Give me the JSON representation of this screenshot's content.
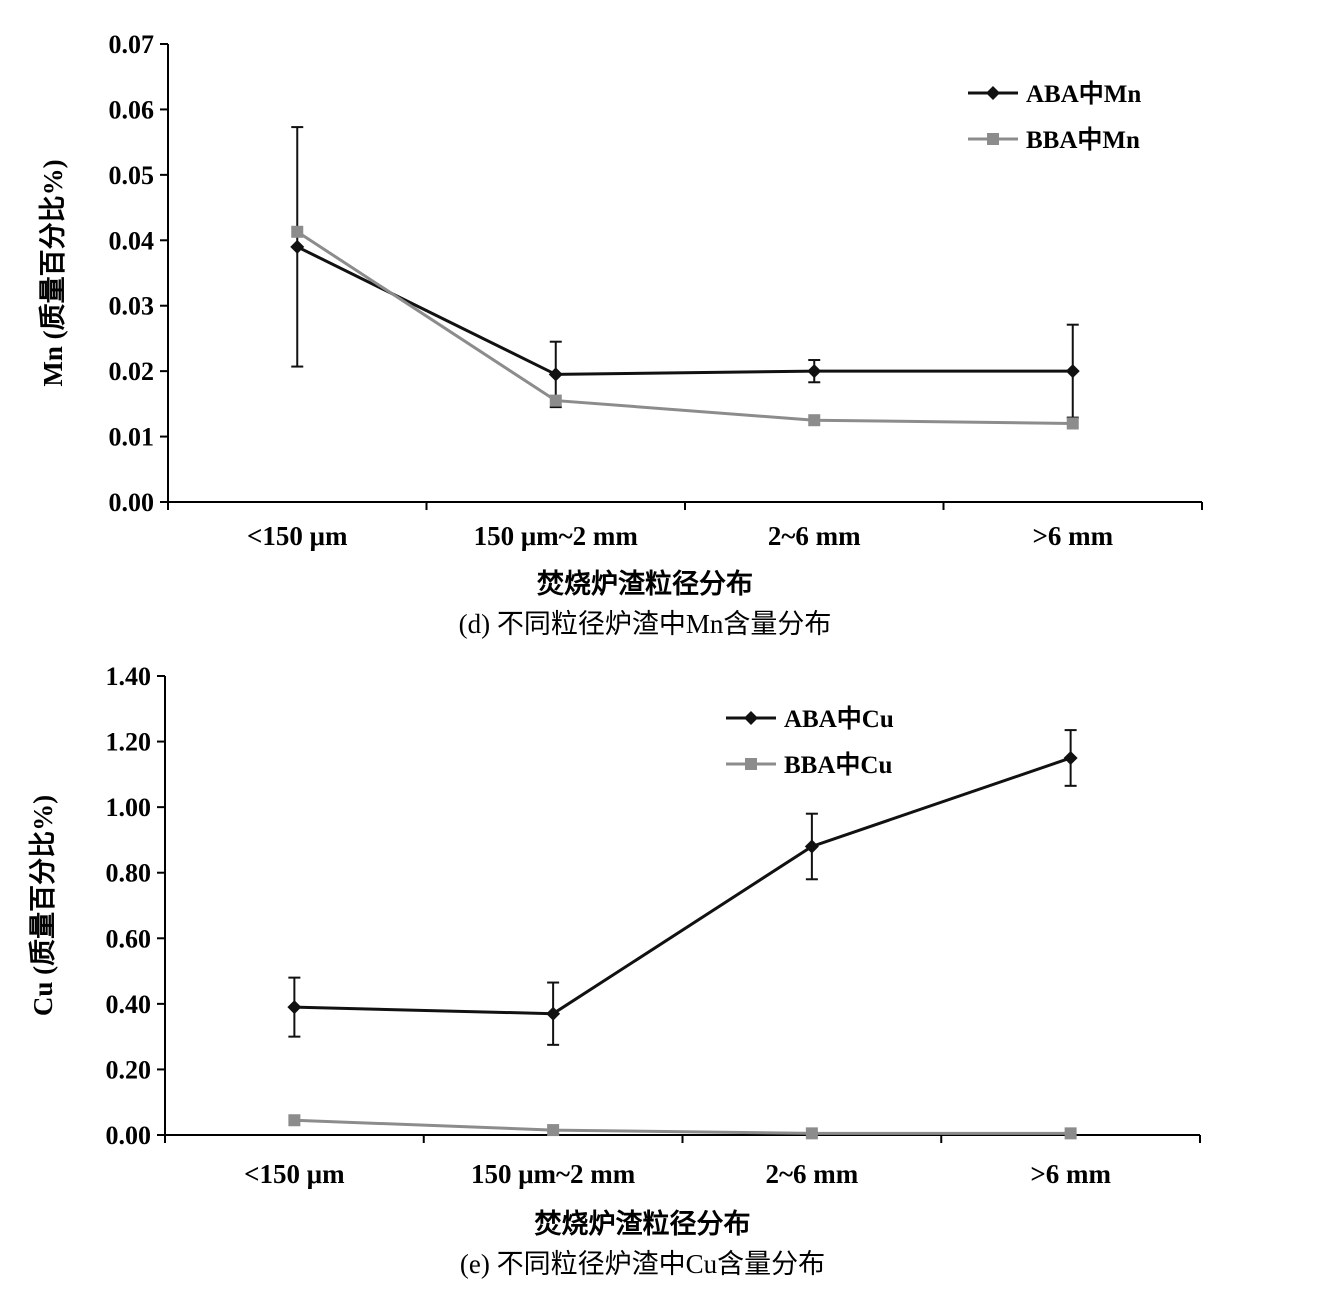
{
  "chart_data": [
    {
      "type": "line",
      "panel": "d",
      "categories": [
        "<150 μm",
        "150 μm~2 mm",
        "2~6 mm",
        ">6 mm"
      ],
      "xlabel": "焚烧炉渣粒径分布",
      "ylabel": "Mn (质量百分比%)",
      "caption": "(d) 不同粒径炉渣中Mn含量分布",
      "ylim": [
        0,
        0.07
      ],
      "yticks": [
        "0.00",
        "0.01",
        "0.02",
        "0.03",
        "0.04",
        "0.05",
        "0.06",
        "0.07"
      ],
      "legend_position": "top-right",
      "series": [
        {
          "name": "ABA中Mn",
          "color": "#111111",
          "marker": "diamond",
          "values": [
            0.039,
            0.0195,
            0.02,
            0.02
          ],
          "errors": [
            0.0183,
            0.005,
            0.0017,
            0.0071
          ]
        },
        {
          "name": "BBA中Mn",
          "color": "#8c8c8c",
          "marker": "square",
          "values": [
            0.0413,
            0.0155,
            0.0125,
            0.012
          ],
          "errors": [
            0,
            0,
            0,
            0
          ]
        }
      ]
    },
    {
      "type": "line",
      "panel": "e",
      "categories": [
        "<150 μm",
        "150 μm~2 mm",
        "2~6 mm",
        ">6 mm"
      ],
      "xlabel": "焚烧炉渣粒径分布",
      "ylabel": "Cu (质量百分比%)",
      "caption": "(e) 不同粒径炉渣中Cu含量分布",
      "ylim": [
        0,
        1.4
      ],
      "yticks": [
        "0.00",
        "0.20",
        "0.40",
        "0.60",
        "0.80",
        "1.00",
        "1.20",
        "1.40"
      ],
      "legend_position": "top-center",
      "series": [
        {
          "name": "ABA中Cu",
          "color": "#111111",
          "marker": "diamond",
          "values": [
            0.39,
            0.37,
            0.88,
            1.15
          ],
          "errors": [
            0.09,
            0.095,
            0.1,
            0.085
          ]
        },
        {
          "name": "BBA中Cu",
          "color": "#8c8c8c",
          "marker": "square",
          "values": [
            0.045,
            0.015,
            0.005,
            0.005
          ],
          "errors": [
            0,
            0,
            0,
            0
          ]
        }
      ]
    }
  ]
}
